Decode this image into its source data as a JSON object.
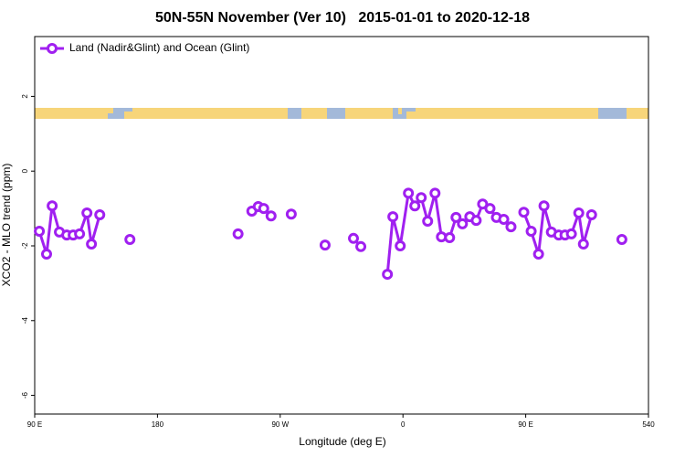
{
  "chart_data": {
    "type": "line",
    "title": "50N-55N November (Ver 10)   2015-01-01 to 2020-12-18",
    "xlabel": "Longitude (deg E)",
    "ylabel": "XCO2 - MLO trend (ppm)",
    "xlim": [
      90,
      540
    ],
    "xticks": [
      {
        "value": 90,
        "label": "90 E"
      },
      180,
      {
        "value": 270,
        "label": "90 W"
      },
      {
        "value": 360,
        "label": "0"
      },
      {
        "value": 450,
        "label": "90 E"
      },
      540
    ],
    "ylim": [
      -6.5,
      3.6
    ],
    "yticks": [
      -6,
      -4,
      -2,
      0,
      2
    ],
    "grid": false,
    "legend": "top-left",
    "x": [
      93.4,
      98.7,
      102.8,
      108.1,
      113.5,
      118.2,
      122.9,
      128.3,
      131.6,
      137.7,
      null,
      159.8,
      null,
      239.1,
      null,
      249.2,
      253.9,
      257.9,
      263.3,
      null,
      278.1,
      null,
      302.9,
      null,
      323.7,
      329.1,
      null,
      348.6,
      352.6,
      358.0,
      364.0,
      368.7,
      373.4,
      378.1,
      383.5,
      388.2,
      394.2,
      398.9,
      403.6,
      409.0,
      413.7,
      418.4,
      423.8,
      428.5,
      433.9,
      439.2,
      null,
      448.6,
      454.0,
      459.4,
      463.4,
      468.8,
      474.2,
      478.8,
      483.5,
      488.9,
      492.3,
      498.3,
      null,
      520.5
    ],
    "series": [
      {
        "name": "Land (Nadir&Glint) and Ocean (Glint)",
        "color": "#a020f0",
        "values": [
          -1.61,
          -2.22,
          -0.93,
          -1.63,
          -1.71,
          -1.71,
          -1.68,
          -1.12,
          -1.95,
          -1.17,
          null,
          -1.83,
          null,
          -1.68,
          null,
          -1.07,
          -0.95,
          -1.0,
          -1.2,
          null,
          -1.15,
          null,
          -1.98,
          null,
          -1.8,
          -2.02,
          null,
          -2.76,
          -1.22,
          -2.0,
          -0.59,
          -0.93,
          -0.71,
          -1.34,
          -0.59,
          -1.76,
          -1.78,
          -1.24,
          -1.41,
          -1.22,
          -1.32,
          -0.88,
          -1.0,
          -1.24,
          -1.29,
          -1.49,
          null,
          -1.1,
          -1.61,
          -2.22,
          -0.93,
          -1.63,
          -1.71,
          -1.71,
          -1.68,
          -1.12,
          -1.95,
          -1.17,
          null,
          -1.83
        ]
      }
    ]
  }
}
